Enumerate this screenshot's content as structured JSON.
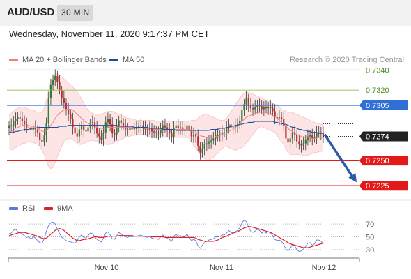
{
  "header": {
    "symbol": "AUD/USD",
    "timeframe": "30 MIN",
    "datetime": "Wednesday, November 11, 2020 9:17:37 PM CET"
  },
  "legend": {
    "items": [
      {
        "label": "MA 20 + Bollinger Bands",
        "color": "#f08080"
      },
      {
        "label": "MA 50",
        "color": "#1f4e9c"
      }
    ],
    "copyright": "Research © 2020 Trading Central"
  },
  "rsi_legend": {
    "items": [
      {
        "label": "RSI",
        "color": "#5b7be0"
      },
      {
        "label": "9MA",
        "color": "#e02020"
      }
    ]
  },
  "chart_data": [
    {
      "type": "candlestick",
      "title": "AUD/USD 30 MIN",
      "ylim": [
        0.7212,
        0.7343
      ],
      "x_ticks": [
        "Nov 10",
        "Nov 11",
        "Nov 12"
      ],
      "last_price": "0.7274",
      "levels": [
        {
          "value": 0.734,
          "label": "0.7340",
          "kind": "resistance"
        },
        {
          "value": 0.732,
          "label": "0.7320",
          "kind": "resistance"
        },
        {
          "value": 0.7305,
          "label": "0.7305",
          "kind": "pivot"
        },
        {
          "value": 0.725,
          "label": "0.7250",
          "kind": "support"
        },
        {
          "value": 0.7225,
          "label": "0.7225",
          "kind": "support"
        }
      ],
      "forecast_arrow": {
        "from": 0.7276,
        "to": 0.7227
      },
      "close_series": [
        0.7285,
        0.7284,
        0.7289,
        0.7291,
        0.7293,
        0.7292,
        0.7289,
        0.7286,
        0.7283,
        0.7283,
        0.728,
        0.7283,
        0.7281,
        0.7278,
        0.7271,
        0.7269,
        0.7275,
        0.7287,
        0.7312,
        0.7325,
        0.733,
        0.7334,
        0.7328,
        0.732,
        0.7312,
        0.7307,
        0.7301,
        0.7296,
        0.7291,
        0.7283,
        0.7277,
        0.7274,
        0.7281,
        0.7284,
        0.728,
        0.7279,
        0.7283,
        0.7287,
        0.7288,
        0.7283,
        0.7277,
        0.7274,
        0.7271,
        0.7278,
        0.7288,
        0.7291,
        0.7286,
        0.7277,
        0.7276,
        0.7284,
        0.729,
        0.7287,
        0.7285,
        0.7281,
        0.728,
        0.7282,
        0.7281,
        0.7282,
        0.7282,
        0.7284,
        0.7285,
        0.7282,
        0.7281,
        0.728,
        0.7282,
        0.7279,
        0.7278,
        0.7278,
        0.7277,
        0.7281,
        0.7285,
        0.7283,
        0.728,
        0.7277,
        0.7273,
        0.7282,
        0.7285,
        0.7282,
        0.7283,
        0.7281,
        0.7281,
        0.7285,
        0.728,
        0.7274,
        0.7276,
        0.7274,
        0.7264,
        0.7258,
        0.7262,
        0.7266,
        0.7267,
        0.7269,
        0.727,
        0.7272,
        0.7275,
        0.7275,
        0.7276,
        0.7278,
        0.7278,
        0.7282,
        0.7286,
        0.7283,
        0.7282,
        0.7285,
        0.7286,
        0.7289,
        0.73,
        0.7306,
        0.7312,
        0.7305,
        0.7302,
        0.7301,
        0.7303,
        0.7305,
        0.7304,
        0.7301,
        0.7303,
        0.7302,
        0.7303,
        0.7302,
        0.7299,
        0.7293,
        0.7292,
        0.7293,
        0.7291,
        0.7285,
        0.7272,
        0.7268,
        0.7272,
        0.7278,
        0.7276,
        0.7269,
        0.7266,
        0.7265,
        0.7267,
        0.7271,
        0.7274,
        0.7275,
        0.7272,
        0.7273,
        0.7278,
        0.7278,
        0.7277,
        0.7274
      ],
      "ma20": [
        0.7278,
        0.7279,
        0.728,
        0.7282,
        0.7283,
        0.7284,
        0.7285,
        0.7285,
        0.7285,
        0.7285,
        0.7284,
        0.7284,
        0.7283,
        0.7282,
        0.7281,
        0.7279,
        0.7279,
        0.728,
        0.7282,
        0.7285,
        0.7288,
        0.7292,
        0.7295,
        0.7297,
        0.7299,
        0.73,
        0.7301,
        0.7301,
        0.7301,
        0.73,
        0.7298,
        0.7296,
        0.7294,
        0.7292,
        0.729,
        0.7288,
        0.7287,
        0.7286,
        0.7285,
        0.7284,
        0.7283,
        0.7282,
        0.7282,
        0.7282,
        0.7282,
        0.7283,
        0.7283,
        0.7283,
        0.7283,
        0.7283,
        0.7283,
        0.7283,
        0.7283,
        0.7283,
        0.7283,
        0.7283,
        0.7283,
        0.7283,
        0.7283,
        0.7283,
        0.7283,
        0.7283,
        0.7282,
        0.7282,
        0.7282,
        0.7282,
        0.7281,
        0.7281,
        0.7281,
        0.7281,
        0.7281,
        0.7281,
        0.7281,
        0.7281,
        0.7281,
        0.7281,
        0.7281,
        0.7281,
        0.7281,
        0.7281,
        0.7281,
        0.7281,
        0.728,
        0.7279,
        0.7278,
        0.7277,
        0.7276,
        0.7275,
        0.7274,
        0.7274,
        0.7273,
        0.7273,
        0.7273,
        0.7273,
        0.7274,
        0.7274,
        0.7275,
        0.7276,
        0.7277,
        0.7278,
        0.7279,
        0.728,
        0.7281,
        0.7283,
        0.7285,
        0.7287,
        0.7289,
        0.7291,
        0.7293,
        0.7294,
        0.7295,
        0.7296,
        0.7297,
        0.7298,
        0.7298,
        0.7298,
        0.7298,
        0.7298,
        0.7297,
        0.7296,
        0.7295,
        0.7294,
        0.7292,
        0.729,
        0.7288,
        0.7286,
        0.7284,
        0.7282,
        0.728,
        0.7279,
        0.7277,
        0.7276,
        0.7275,
        0.7274,
        0.7273,
        0.7273,
        0.7273,
        0.7272,
        0.7272,
        0.7272,
        0.7272,
        0.7273,
        0.7273,
        0.7273
      ],
      "ma50": [
        0.7278,
        0.7278,
        0.7278,
        0.7279,
        0.7279,
        0.728,
        0.728,
        0.7281,
        0.7281,
        0.7281,
        0.7282,
        0.7282,
        0.7282,
        0.7283,
        0.7283,
        0.7283,
        0.7283,
        0.7283,
        0.7283,
        0.7283,
        0.7283,
        0.7283,
        0.7283,
        0.7284,
        0.7284,
        0.7284,
        0.7284,
        0.7285,
        0.7285,
        0.7285,
        0.7285,
        0.7285,
        0.7285,
        0.7285,
        0.7285,
        0.7285,
        0.7285,
        0.7285,
        0.7285,
        0.7285,
        0.7285,
        0.7285,
        0.7285,
        0.7285,
        0.7285,
        0.7285,
        0.7285,
        0.7285,
        0.7285,
        0.7285,
        0.7284,
        0.7284,
        0.7284,
        0.7284,
        0.7284,
        0.7284,
        0.7284,
        0.7283,
        0.7283,
        0.7283,
        0.7283,
        0.7283,
        0.7283,
        0.7283,
        0.7282,
        0.7282,
        0.7282,
        0.7282,
        0.7282,
        0.7282,
        0.7281,
        0.7281,
        0.7281,
        0.7281,
        0.7281,
        0.7281,
        0.728,
        0.728,
        0.728,
        0.728,
        0.728,
        0.728,
        0.728,
        0.728,
        0.728,
        0.728,
        0.728,
        0.728,
        0.728,
        0.728,
        0.728,
        0.728,
        0.7281,
        0.7281,
        0.7281,
        0.7281,
        0.7282,
        0.7282,
        0.7282,
        0.7283,
        0.7283,
        0.7284,
        0.7284,
        0.7285,
        0.7285,
        0.7286,
        0.7286,
        0.7287,
        0.7287,
        0.7288,
        0.7288,
        0.7288,
        0.7289,
        0.7289,
        0.7289,
        0.7289,
        0.7289,
        0.7289,
        0.7289,
        0.7289,
        0.7289,
        0.7288,
        0.7288,
        0.7287,
        0.7287,
        0.7286,
        0.7286,
        0.7285,
        0.7284,
        0.7283,
        0.7283,
        0.7282,
        0.7281,
        0.7281,
        0.728,
        0.728,
        0.7279,
        0.7279,
        0.7278,
        0.7278,
        0.7278,
        0.7277,
        0.7277,
        0.7277
      ],
      "bb_upper": [
        0.7295,
        0.7297,
        0.7299,
        0.7301,
        0.7302,
        0.7303,
        0.7303,
        0.7303,
        0.7302,
        0.7301,
        0.73,
        0.73,
        0.7299,
        0.7298,
        0.7298,
        0.7298,
        0.7302,
        0.731,
        0.732,
        0.7328,
        0.7333,
        0.7336,
        0.7336,
        0.7335,
        0.7333,
        0.7331,
        0.7329,
        0.7327,
        0.7325,
        0.7323,
        0.7321,
        0.7318,
        0.7315,
        0.7311,
        0.7307,
        0.7303,
        0.73,
        0.7298,
        0.7297,
        0.7296,
        0.7296,
        0.7296,
        0.7296,
        0.7297,
        0.7298,
        0.7299,
        0.7299,
        0.7299,
        0.7298,
        0.7297,
        0.7296,
        0.7295,
        0.7294,
        0.7293,
        0.7292,
        0.7292,
        0.7291,
        0.7291,
        0.729,
        0.729,
        0.729,
        0.729,
        0.729,
        0.729,
        0.729,
        0.729,
        0.729,
        0.7289,
        0.7289,
        0.7289,
        0.7289,
        0.7289,
        0.7289,
        0.7289,
        0.7289,
        0.7289,
        0.7289,
        0.7289,
        0.7289,
        0.7289,
        0.7289,
        0.7289,
        0.7289,
        0.729,
        0.729,
        0.729,
        0.7292,
        0.7294,
        0.7295,
        0.7296,
        0.7296,
        0.7295,
        0.7294,
        0.7293,
        0.7292,
        0.7291,
        0.729,
        0.729,
        0.729,
        0.7292,
        0.7295,
        0.7298,
        0.7302,
        0.7306,
        0.7309,
        0.7312,
        0.7315,
        0.7317,
        0.7318,
        0.7318,
        0.7317,
        0.7316,
        0.7315,
        0.7314,
        0.7313,
        0.7312,
        0.7311,
        0.731,
        0.7309,
        0.7308,
        0.7307,
        0.7306,
        0.7305,
        0.7303,
        0.7301,
        0.73,
        0.7299,
        0.7298,
        0.7298,
        0.7298,
        0.7297,
        0.7296,
        0.7295,
        0.7294,
        0.7293,
        0.7292,
        0.7291,
        0.729,
        0.7289,
        0.7288,
        0.7287,
        0.7287,
        0.7286,
        0.7286
      ],
      "bb_lower": [
        0.7262,
        0.7261,
        0.7261,
        0.7263,
        0.7264,
        0.7265,
        0.7267,
        0.7267,
        0.7268,
        0.7269,
        0.7268,
        0.7268,
        0.7267,
        0.7266,
        0.7264,
        0.726,
        0.7256,
        0.725,
        0.7244,
        0.7242,
        0.7243,
        0.7248,
        0.7254,
        0.7259,
        0.7264,
        0.7268,
        0.7271,
        0.7272,
        0.7272,
        0.7271,
        0.7269,
        0.7267,
        0.7266,
        0.7266,
        0.7267,
        0.7268,
        0.7269,
        0.727,
        0.727,
        0.727,
        0.7269,
        0.7268,
        0.7268,
        0.7267,
        0.7266,
        0.7266,
        0.7266,
        0.7267,
        0.7268,
        0.7269,
        0.727,
        0.7271,
        0.7272,
        0.7273,
        0.7274,
        0.7274,
        0.7275,
        0.7275,
        0.7276,
        0.7276,
        0.7276,
        0.7276,
        0.7275,
        0.7275,
        0.7274,
        0.7274,
        0.7273,
        0.7273,
        0.7273,
        0.7273,
        0.7273,
        0.7273,
        0.7273,
        0.7273,
        0.7273,
        0.7273,
        0.7273,
        0.7273,
        0.7273,
        0.7273,
        0.7273,
        0.7273,
        0.7272,
        0.7268,
        0.7265,
        0.7262,
        0.7259,
        0.7256,
        0.7253,
        0.7252,
        0.725,
        0.7251,
        0.7252,
        0.7253,
        0.7256,
        0.7257,
        0.726,
        0.7262,
        0.7264,
        0.7264,
        0.7263,
        0.7262,
        0.7261,
        0.726,
        0.7261,
        0.7262,
        0.7263,
        0.7265,
        0.7268,
        0.727,
        0.7273,
        0.7276,
        0.7279,
        0.7282,
        0.7283,
        0.7284,
        0.7283,
        0.7282,
        0.7281,
        0.728,
        0.7279,
        0.7278,
        0.7275,
        0.7272,
        0.7269,
        0.7266,
        0.7262,
        0.7258,
        0.7256,
        0.7256,
        0.7256,
        0.7256,
        0.7256,
        0.7256,
        0.7255,
        0.7255,
        0.7255,
        0.7256,
        0.7257,
        0.7258,
        0.7258,
        0.7259,
        0.7259,
        0.726
      ]
    },
    {
      "type": "line",
      "title": "RSI",
      "ylim": [
        20,
        80
      ],
      "y_ticks": [
        70,
        50,
        30
      ],
      "series": [
        {
          "name": "RSI",
          "color": "#5b7be0",
          "values": [
            55,
            56,
            60,
            62,
            58,
            57,
            54,
            52,
            49,
            50,
            46,
            50,
            48,
            44,
            41,
            40,
            47,
            59,
            68,
            72,
            73,
            70,
            62,
            55,
            49,
            47,
            44,
            43,
            42,
            41,
            40,
            44,
            50,
            53,
            49,
            48,
            52,
            56,
            55,
            50,
            46,
            44,
            42,
            48,
            56,
            58,
            53,
            47,
            46,
            52,
            57,
            54,
            52,
            50,
            49,
            51,
            50,
            51,
            51,
            52,
            53,
            51,
            50,
            49,
            51,
            48,
            47,
            47,
            46,
            50,
            53,
            51,
            48,
            46,
            43,
            51,
            54,
            51,
            52,
            50,
            50,
            54,
            49,
            44,
            46,
            44,
            36,
            32,
            37,
            41,
            43,
            45,
            46,
            47,
            50,
            50,
            51,
            53,
            53,
            56,
            60,
            57,
            56,
            58,
            60,
            64,
            72,
            76,
            74,
            65,
            59,
            57,
            59,
            62,
            60,
            56,
            58,
            56,
            58,
            56,
            52,
            46,
            44,
            45,
            43,
            38,
            31,
            28,
            32,
            38,
            36,
            30,
            27,
            28,
            31,
            35,
            40,
            41,
            37,
            39,
            45,
            45,
            43,
            39
          ]
        },
        {
          "name": "9MA",
          "color": "#e02020",
          "values": [
            52,
            53,
            54,
            55,
            56,
            57,
            57,
            57,
            56,
            55,
            54,
            53,
            52,
            51,
            49,
            48,
            47,
            48,
            51,
            54,
            57,
            60,
            62,
            63,
            62,
            60,
            57,
            54,
            51,
            48,
            46,
            44,
            44,
            45,
            46,
            46,
            47,
            48,
            49,
            50,
            50,
            49,
            49,
            49,
            50,
            51,
            51,
            51,
            51,
            51,
            52,
            52,
            52,
            52,
            52,
            52,
            52,
            51,
            51,
            51,
            51,
            51,
            51,
            51,
            51,
            50,
            50,
            50,
            50,
            50,
            50,
            49,
            49,
            49,
            49,
            49,
            49,
            49,
            49,
            49,
            49,
            49,
            49,
            49,
            49,
            48,
            46,
            45,
            44,
            43,
            43,
            43,
            43,
            43,
            44,
            45,
            47,
            49,
            50,
            51,
            53,
            54,
            56,
            57,
            58,
            60,
            62,
            64,
            65,
            66,
            66,
            65,
            64,
            63,
            62,
            61,
            60,
            59,
            58,
            57,
            55,
            53,
            51,
            49,
            47,
            45,
            43,
            41,
            39,
            38,
            37,
            36,
            35,
            34,
            33,
            33,
            33,
            34,
            35,
            36,
            37,
            38,
            39,
            40
          ]
        }
      ]
    }
  ]
}
